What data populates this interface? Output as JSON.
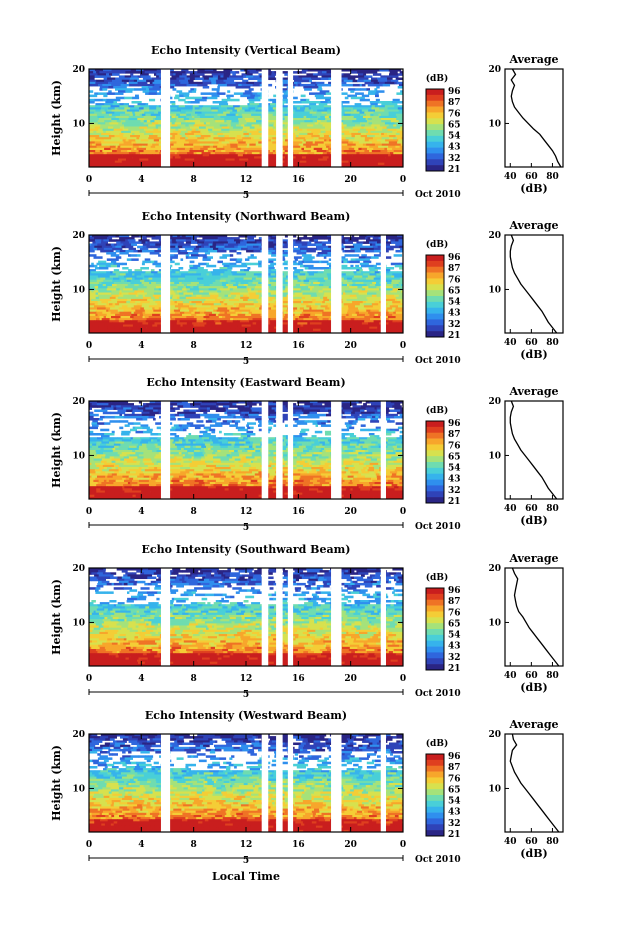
{
  "figure": {
    "xlabel": "Local Time",
    "date_label": "Oct 2010",
    "day_label": "5",
    "colorbar_unit": "(dB)",
    "colorbar_ticks": [
      "96",
      "87",
      "76",
      "65",
      "54",
      "43",
      "32",
      "21"
    ],
    "profile_title": "Average",
    "profile_xlabel": "(dB)",
    "ylabel": "Height (km)"
  },
  "chart_data": [
    {
      "type": "heatmap",
      "title": "Echo Intensity (Vertical Beam)",
      "ylabel": "Height (km)",
      "xlabel": "Local Time",
      "xticks": [
        "0",
        "4",
        "8",
        "12",
        "16",
        "20",
        "0"
      ],
      "yticks": [
        "20",
        "10"
      ],
      "xlim": [
        0,
        24
      ],
      "ylim": [
        2,
        20
      ],
      "gaps_hours": [
        [
          5.5,
          6.2
        ],
        [
          13.2,
          13.7
        ],
        [
          14.3,
          14.8
        ],
        [
          15.2,
          15.6
        ],
        [
          18.5,
          19.3
        ]
      ],
      "profile": {
        "title": "Average",
        "xlabel": "(dB)",
        "xticks": [
          "40",
          "60",
          "80"
        ],
        "yticks": [
          "20",
          "10"
        ],
        "xlim": [
          35,
          90
        ],
        "height_km": [
          2,
          3,
          4,
          5,
          6,
          7,
          8,
          9,
          10,
          11,
          12,
          13,
          14,
          15,
          16,
          17,
          18,
          19,
          20
        ],
        "mean_db": [
          88,
          85,
          83,
          80,
          76,
          72,
          68,
          62,
          57,
          52,
          48,
          44,
          42,
          41,
          42,
          44,
          41,
          45,
          42
        ]
      }
    },
    {
      "type": "heatmap",
      "title": "Echo Intensity (Northward Beam)",
      "ylabel": "Height (km)",
      "xlabel": "Local Time",
      "xticks": [
        "0",
        "4",
        "8",
        "12",
        "16",
        "20",
        "0"
      ],
      "yticks": [
        "20",
        "10"
      ],
      "xlim": [
        0,
        24
      ],
      "ylim": [
        2,
        20
      ],
      "gaps_hours": [
        [
          5.5,
          6.2
        ],
        [
          13.2,
          13.7
        ],
        [
          14.3,
          14.8
        ],
        [
          15.2,
          15.6
        ],
        [
          18.5,
          19.3
        ],
        [
          22.3,
          22.7
        ]
      ],
      "profile": {
        "title": "Average",
        "xlabel": "(dB)",
        "xticks": [
          "40",
          "60",
          "80"
        ],
        "yticks": [
          "20",
          "10"
        ],
        "xlim": [
          35,
          90
        ],
        "height_km": [
          2,
          3,
          4,
          5,
          6,
          7,
          8,
          9,
          10,
          11,
          12,
          13,
          14,
          15,
          16,
          17,
          18,
          19,
          20
        ],
        "mean_db": [
          84,
          80,
          76,
          73,
          70,
          66,
          62,
          58,
          54,
          50,
          47,
          44,
          42,
          41,
          40,
          40,
          41,
          43,
          41
        ]
      }
    },
    {
      "type": "heatmap",
      "title": "Echo Intensity (Eastward Beam)",
      "ylabel": "Height (km)",
      "xlabel": "Local Time",
      "xticks": [
        "0",
        "4",
        "8",
        "12",
        "16",
        "20",
        "0"
      ],
      "yticks": [
        "20",
        "10"
      ],
      "xlim": [
        0,
        24
      ],
      "ylim": [
        2,
        20
      ],
      "gaps_hours": [
        [
          5.5,
          6.2
        ],
        [
          13.2,
          13.7
        ],
        [
          14.3,
          14.8
        ],
        [
          15.2,
          15.6
        ],
        [
          18.5,
          19.3
        ],
        [
          22.3,
          22.7
        ]
      ],
      "profile": {
        "title": "Average",
        "xlabel": "(dB)",
        "xticks": [
          "40",
          "60",
          "80"
        ],
        "yticks": [
          "20",
          "10"
        ],
        "xlim": [
          35,
          90
        ],
        "height_km": [
          2,
          3,
          4,
          5,
          6,
          7,
          8,
          9,
          10,
          11,
          12,
          13,
          14,
          15,
          16,
          17,
          18,
          19,
          20
        ],
        "mean_db": [
          84,
          80,
          76,
          73,
          70,
          66,
          62,
          58,
          54,
          50,
          47,
          44,
          42,
          41,
          40,
          40,
          41,
          43,
          41
        ]
      }
    },
    {
      "type": "heatmap",
      "title": "Echo Intensity (Southward Beam)",
      "ylabel": "Height (km)",
      "xlabel": "Local Time",
      "xticks": [
        "0",
        "4",
        "8",
        "12",
        "16",
        "20",
        "0"
      ],
      "yticks": [
        "20",
        "10"
      ],
      "xlim": [
        0,
        24
      ],
      "ylim": [
        2,
        20
      ],
      "gaps_hours": [
        [
          5.5,
          6.2
        ],
        [
          13.2,
          13.7
        ],
        [
          14.3,
          14.8
        ],
        [
          15.2,
          15.6
        ],
        [
          18.5,
          19.3
        ],
        [
          22.3,
          22.7
        ]
      ],
      "profile": {
        "title": "Average",
        "xlabel": "(dB)",
        "xticks": [
          "40",
          "60",
          "80"
        ],
        "yticks": [
          "20",
          "10"
        ],
        "xlim": [
          35,
          90
        ],
        "height_km": [
          2,
          3,
          4,
          5,
          6,
          7,
          8,
          9,
          10,
          11,
          12,
          13,
          14,
          15,
          16,
          17,
          18,
          19,
          20
        ],
        "mean_db": [
          86,
          82,
          78,
          74,
          70,
          66,
          62,
          58,
          55,
          52,
          48,
          46,
          45,
          44,
          45,
          46,
          47,
          44,
          42
        ]
      }
    },
    {
      "type": "heatmap",
      "title": "Echo Intensity (Westward Beam)",
      "ylabel": "Height (km)",
      "xlabel": "Local Time",
      "xticks": [
        "0",
        "4",
        "8",
        "12",
        "16",
        "20",
        "0"
      ],
      "yticks": [
        "20",
        "10"
      ],
      "xlim": [
        0,
        24
      ],
      "ylim": [
        2,
        20
      ],
      "gaps_hours": [
        [
          5.5,
          6.2
        ],
        [
          13.2,
          13.7
        ],
        [
          14.3,
          14.8
        ],
        [
          15.2,
          15.6
        ],
        [
          18.5,
          19.3
        ],
        [
          22.3,
          22.7
        ]
      ],
      "profile": {
        "title": "Average",
        "xlabel": "(dB)",
        "xticks": [
          "40",
          "60",
          "80"
        ],
        "yticks": [
          "20",
          "10"
        ],
        "xlim": [
          35,
          90
        ],
        "height_km": [
          2,
          3,
          4,
          5,
          6,
          7,
          8,
          9,
          10,
          11,
          12,
          13,
          14,
          15,
          16,
          17,
          18,
          19,
          20
        ],
        "mean_db": [
          86,
          82,
          78,
          74,
          70,
          66,
          62,
          58,
          54,
          50,
          47,
          44,
          42,
          40,
          41,
          42,
          46,
          43,
          42
        ]
      }
    }
  ]
}
